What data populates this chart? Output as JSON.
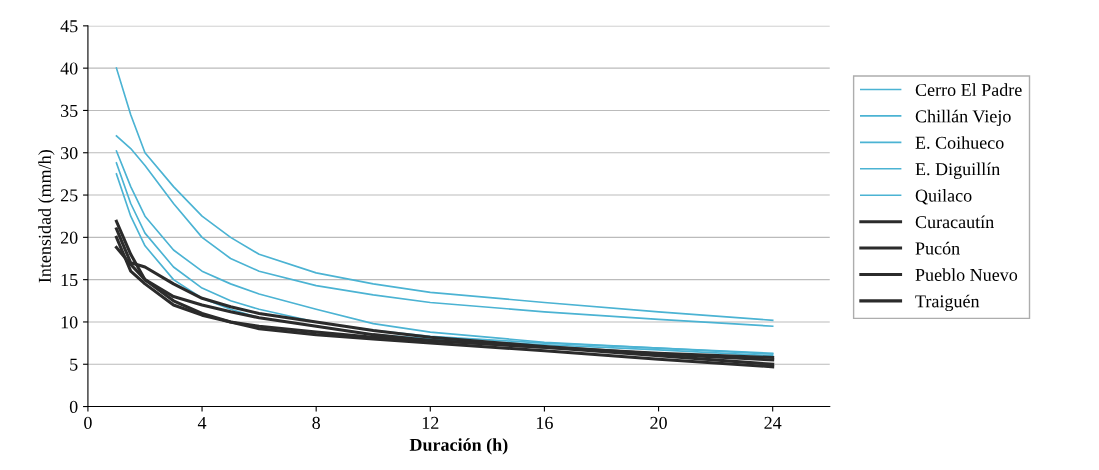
{
  "chart_data": {
    "type": "line",
    "xlabel": "Duración (h)",
    "ylabel": "Intensidad (mm/h)",
    "xlim": [
      0,
      26
    ],
    "xticks": [
      0,
      4,
      8,
      12,
      16,
      20,
      24
    ],
    "ylim": [
      0,
      45
    ],
    "yticks": [
      0,
      5,
      10,
      15,
      20,
      25,
      30,
      35,
      40,
      45
    ],
    "grid": "y",
    "legend": "right",
    "marker": "none",
    "line_style": "solid",
    "x": [
      1,
      1.5,
      2,
      3,
      4,
      5,
      6,
      8,
      10,
      12,
      16,
      20,
      24
    ],
    "series": [
      {
        "name": "Cerro El Padre",
        "color": "#4bb3d3",
        "values": [
          40,
          34.5,
          30,
          26,
          22.5,
          20,
          18,
          15.8,
          14.5,
          13.5,
          12.3,
          11.2,
          10.2
        ]
      },
      {
        "name": "Chillán Viejo",
        "color": "#4bb3d3",
        "values": [
          32,
          30.5,
          28.5,
          24,
          20,
          17.5,
          16,
          14.3,
          13.2,
          12.3,
          11.2,
          10.3,
          9.5
        ]
      },
      {
        "name": "E. Coihueco",
        "color": "#4bb3d3",
        "values": [
          30.2,
          26,
          22.5,
          18.5,
          16,
          14.5,
          13.3,
          11.5,
          9.8,
          8.8,
          7.6,
          6.9,
          6.3
        ]
      },
      {
        "name": "E. Diguillín",
        "color": "#4bb3d3",
        "values": [
          28.8,
          24,
          20.5,
          16.5,
          14,
          12.5,
          11.5,
          10,
          9,
          8.3,
          7.5,
          6.9,
          6.2
        ]
      },
      {
        "name": "Quilaco",
        "color": "#4bb3d3",
        "values": [
          27.5,
          22.5,
          19,
          15,
          12.8,
          11.5,
          10.5,
          9.5,
          8.5,
          8,
          7.3,
          6.7,
          6
        ]
      },
      {
        "name": "Curacautín",
        "color": "#2b2b2b",
        "values": [
          21.9,
          18,
          15,
          13,
          12,
          11.2,
          10.5,
          9.5,
          8.5,
          7.8,
          7,
          6.3,
          5.8
        ]
      },
      {
        "name": "Pucón",
        "color": "#2b2b2b",
        "values": [
          21,
          17,
          16.5,
          14.5,
          12.8,
          11.8,
          11,
          10,
          9,
          8.2,
          7.1,
          6.2,
          5.5
        ]
      },
      {
        "name": "Pueblo Nuevo",
        "color": "#2b2b2b",
        "values": [
          20,
          16,
          14.5,
          12,
          10.8,
          10,
          9.5,
          8.8,
          8.2,
          7.8,
          7,
          6,
          5
        ]
      },
      {
        "name": "Traiguén",
        "color": "#2b2b2b",
        "values": [
          18.8,
          16.8,
          15,
          12.5,
          11,
          10,
          9.2,
          8.5,
          8,
          7.5,
          6.6,
          5.6,
          4.7
        ]
      }
    ]
  }
}
